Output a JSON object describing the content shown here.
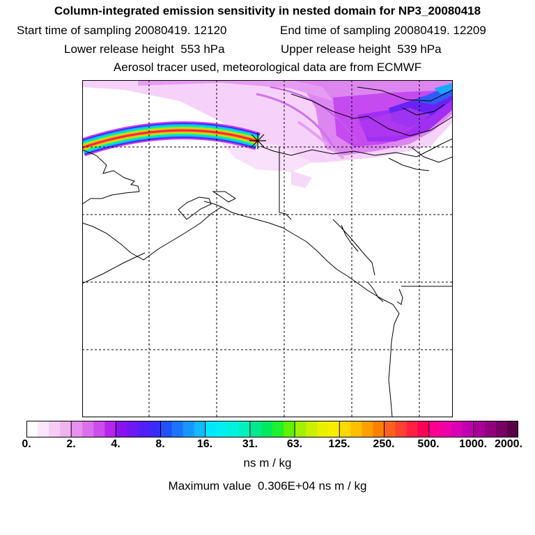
{
  "header": {
    "title": "Column-integrated emission sensitivity in nested domain for NP3_20080418",
    "start_label": "Start time of sampling 20080419. 12120",
    "end_label": "End time of sampling 20080419. 12209",
    "lower_label": "Lower release height  553 hPa",
    "upper_label": "Upper release height  539 hPa",
    "tracer_line": "Aerosol tracer used, meteorological data are from ECMWF"
  },
  "map": {
    "release_marker": "star-marker-icon",
    "features": [
      "coastline",
      "country-borders",
      "lat-lon-grid",
      "emission-sensitivity-plume"
    ]
  },
  "colorbar": {
    "ticks": [
      "0.",
      "2.",
      "4.",
      "8.",
      "16.",
      "31.",
      "63.",
      "125.",
      "250.",
      "500.",
      "1000.",
      "2000."
    ],
    "colors": [
      [
        "#ffffff",
        "#fbe6fb",
        "#f6ccf6",
        "#f0b3f0"
      ],
      [
        "#e890ee",
        "#dc70ec",
        "#cc4cee",
        "#b626ee"
      ],
      [
        "#8a14f0",
        "#6e18f4",
        "#5220f6",
        "#3a2cf8"
      ],
      [
        "#2250fa",
        "#1c74fc",
        "#1896fc",
        "#14b8fc"
      ],
      [
        "#00e8ff",
        "#00f0f0",
        "#00f2dc",
        "#00f0c0"
      ],
      [
        "#00e890",
        "#00e860",
        "#20f030",
        "#60f000"
      ],
      [
        "#a0f000",
        "#c8f000",
        "#e8f000",
        "#f8ec00"
      ],
      [
        "#ffd800",
        "#ffc000",
        "#ffa000",
        "#ff8000"
      ],
      [
        "#ff6020",
        "#ff4030",
        "#ff2040",
        "#ff0058"
      ],
      [
        "#ff0090",
        "#f000a8",
        "#d800b4",
        "#c000b0"
      ],
      [
        "#a80098",
        "#90007c",
        "#780064",
        "#5a0048"
      ]
    ],
    "units": "ns m / kg",
    "max_label": "Maximum value  0.306E+04 ns m / kg"
  }
}
